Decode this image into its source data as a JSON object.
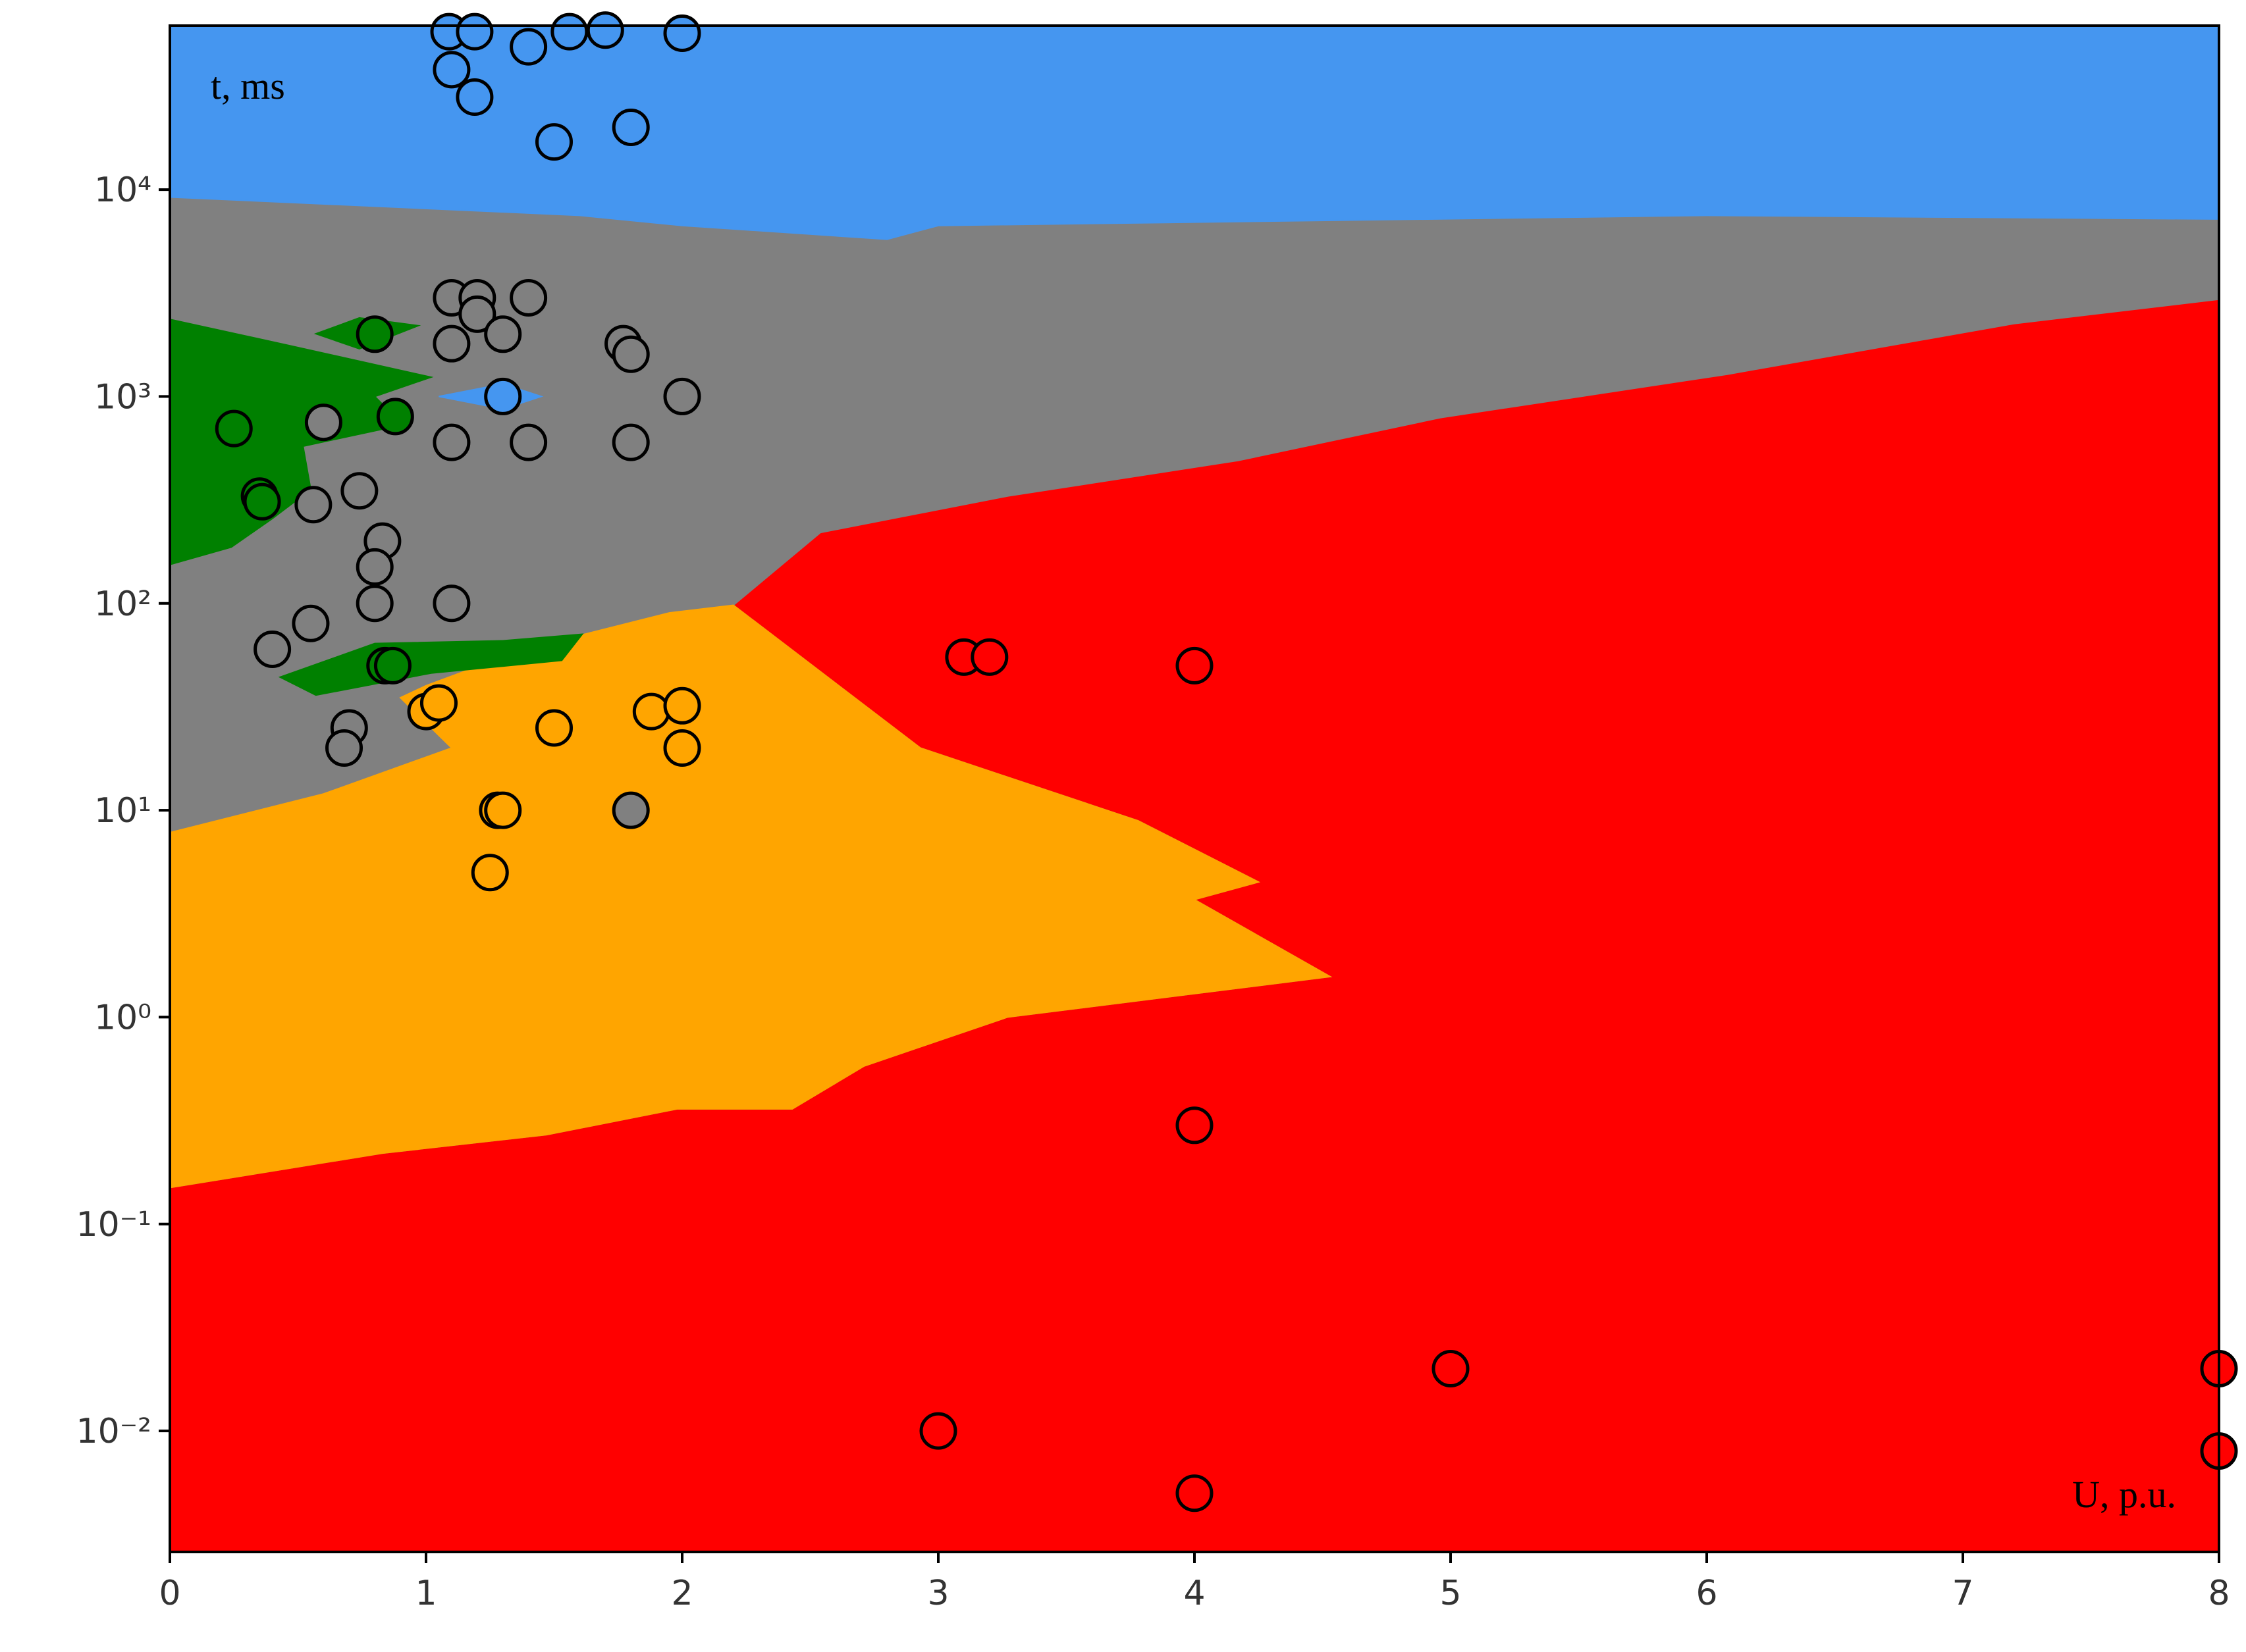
{
  "chart_data": {
    "type": "region_scatter",
    "annotations": [
      "t, ms",
      "U, p.u."
    ],
    "log_y": true,
    "xlim": [
      0,
      8
    ],
    "ylim": [
      0.0026,
      62000
    ],
    "xticks": [
      0,
      1,
      2,
      3,
      4,
      5,
      6,
      7,
      8
    ],
    "yticks": [
      {
        "value": 0.01,
        "label": "10⁻²"
      },
      {
        "value": 0.1,
        "label": "10⁻¹"
      },
      {
        "value": 1,
        "label": "10⁰"
      },
      {
        "value": 10,
        "label": "10¹"
      },
      {
        "value": 100,
        "label": "10²"
      },
      {
        "value": 1000,
        "label": "10³"
      },
      {
        "value": 10000,
        "label": "10⁴"
      }
    ],
    "regions": [
      {
        "color": "#ff0000",
        "x": [
          0,
          8,
          8,
          0
        ],
        "y": [
          0.0026,
          0.0026,
          62000,
          62000
        ]
      },
      {
        "color": "#808080",
        "x": [
          0,
          0.83,
          1.47,
          1.98,
          2.43,
          2.71,
          3.27,
          4.53,
          4.0,
          4.25,
          3.78,
          2.93,
          2.2,
          2.54,
          3.27,
          4.17,
          4.96,
          6.08,
          7.2,
          8,
          8,
          0
        ],
        "y": [
          0.15,
          0.22,
          0.27,
          0.36,
          0.36,
          0.58,
          1.0,
          1.57,
          3.7,
          4.5,
          8.9,
          20,
          98,
          220,
          330,
          490,
          790,
          1280,
          2250,
          2950,
          62000,
          62000
        ]
      },
      {
        "color": "#ffa500",
        "x": [
          0,
          0.83,
          1.47,
          1.98,
          2.43,
          2.71,
          3.27,
          4.53,
          4.0,
          4.25,
          3.78,
          2.93,
          2.2,
          1.95,
          1.6,
          1.3,
          1.0,
          0.9,
          1.1,
          0.6,
          0
        ],
        "y": [
          0.15,
          0.22,
          0.27,
          0.36,
          0.36,
          0.58,
          1.0,
          1.57,
          3.7,
          4.5,
          8.9,
          20,
          98,
          90,
          70,
          55,
          40,
          35,
          20,
          12,
          7.8
        ]
      },
      {
        "color": "#4596f0",
        "x": [
          0,
          1.6,
          2.0,
          2.8,
          3.0,
          6.0,
          8,
          8,
          0
        ],
        "y": [
          9200,
          7500,
          6700,
          5750,
          6700,
          7500,
          7200,
          62000,
          62000
        ]
      },
      {
        "color": "#4596f0",
        "x": [
          1.05,
          1.3,
          1.45,
          1.3
        ],
        "y": [
          1000,
          1150,
          1000,
          870
        ]
      },
      {
        "color": "#008000",
        "x": [
          0,
          0.46,
          1.02,
          0.8,
          0.91,
          0.52,
          0.55,
          0.4,
          0.24,
          0
        ],
        "y": [
          2360,
          1770,
          1240,
          1000,
          730,
          575,
          355,
          257,
          187,
          154
        ]
      },
      {
        "color": "#008000",
        "x": [
          0.57,
          0.74,
          0.97,
          0.74
        ],
        "y": [
          2010,
          2400,
          2200,
          1700
        ]
      },
      {
        "color": "#008000",
        "x": [
          0.43,
          0.8,
          1.3,
          1.61,
          1.53,
          1.02,
          0.57
        ],
        "y": [
          44,
          64,
          66,
          71,
          53,
          46,
          36
        ]
      }
    ],
    "series": [
      {
        "color": "#4596f0",
        "x": [
          1.09,
          1.19,
          1.56,
          1.7,
          2.0,
          1.1,
          1.19,
          1.4,
          1.5,
          1.8,
          1.3
        ],
        "values": [
          58000,
          58000,
          58000,
          59000,
          57000,
          38000,
          28000,
          49000,
          17000,
          20000,
          1000
        ]
      },
      {
        "color": "#808080",
        "x": [
          1.1,
          1.2,
          1.4,
          1.2,
          1.1,
          1.3,
          1.77,
          1.8,
          2.0,
          0.6,
          1.1,
          1.4,
          1.8,
          0.74,
          0.56,
          0.83,
          0.8,
          0.8,
          1.1,
          0.55,
          0.4,
          0.7,
          0.68,
          1.8
        ],
        "values": [
          3000,
          3000,
          3000,
          2500,
          1800,
          2000,
          1800,
          1600,
          1000,
          750,
          600,
          600,
          600,
          350,
          300,
          200,
          150,
          100,
          100,
          80,
          60,
          25,
          20,
          10
        ]
      },
      {
        "color": "#008000",
        "x": [
          0.8,
          0.25,
          0.88,
          0.35,
          0.36,
          0.84,
          0.87
        ],
        "values": [
          2000,
          700,
          800,
          330,
          310,
          50,
          50
        ]
      },
      {
        "color": "#ffa500",
        "x": [
          1.0,
          1.05,
          1.5,
          1.88,
          2.0,
          2.0,
          1.28,
          1.3,
          1.25
        ],
        "values": [
          30,
          33,
          25,
          30,
          32,
          20,
          10,
          10,
          5
        ]
      },
      {
        "color": "#ff0000",
        "x": [
          3.1,
          3.2,
          4,
          4,
          3,
          4,
          5,
          8,
          8
        ],
        "values": [
          55,
          55,
          50,
          0.3,
          0.01,
          0.005,
          0.02,
          0.02,
          0.008
        ]
      }
    ]
  }
}
